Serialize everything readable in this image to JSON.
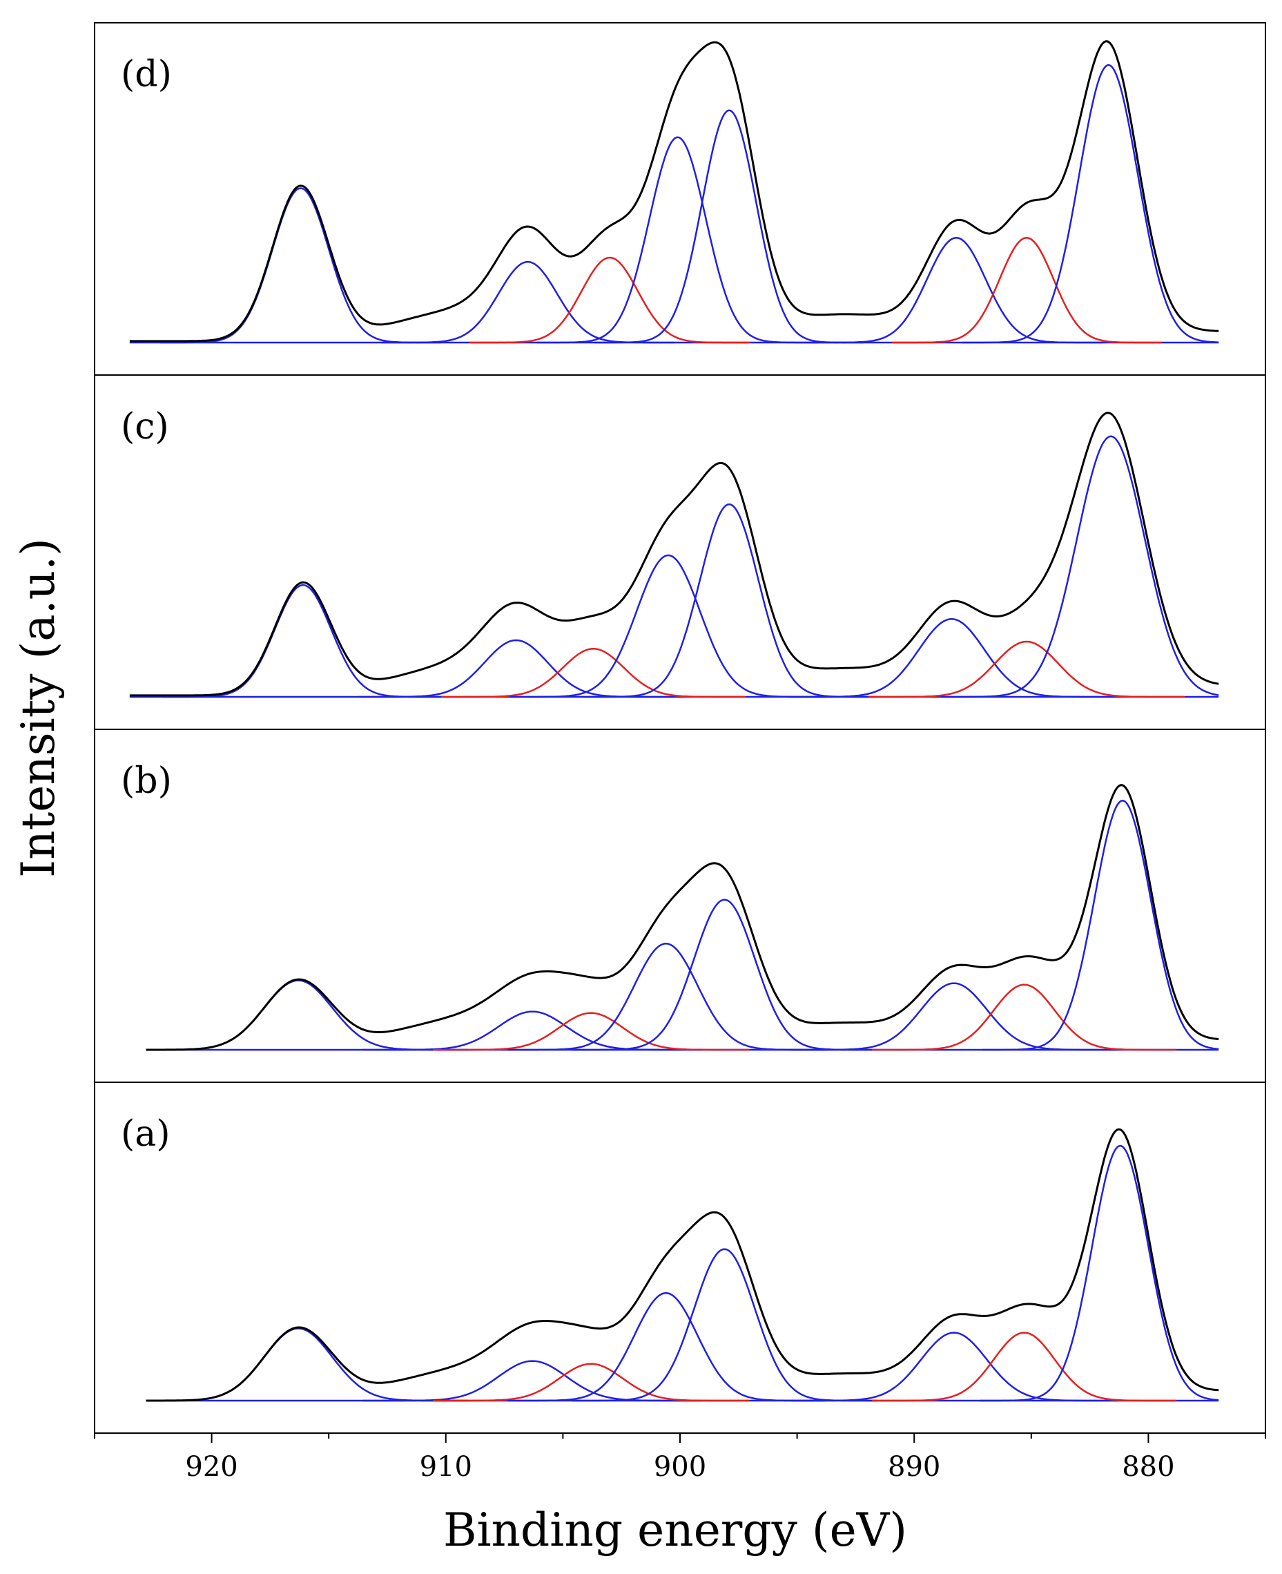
{
  "chart_data": {
    "type": "line",
    "title": "",
    "xlabel": "Binding energy (eV)",
    "ylabel": "Intensity (a.u.)",
    "x_reversed": true,
    "xlim": [
      925,
      875
    ],
    "xticks": [
      920,
      910,
      900,
      890,
      880
    ],
    "x_tick_labels": [
      "920",
      "910",
      "900",
      "890",
      "880"
    ],
    "yticks_shown": false,
    "grid": false,
    "legend": "none",
    "colors": {
      "experimental": "#000000",
      "fit_blue": "#1f1fe6",
      "fit_red": "#e61f1f",
      "baseline": "#1f1fe6"
    },
    "panels": [
      {
        "label": "(d)",
        "x_range": [
          923.5,
          877
        ],
        "ylim": [
          0,
          1.1
        ],
        "peaks": [
          {
            "center": 916.2,
            "height": 0.545,
            "sigma": 1.2,
            "color": "blue"
          },
          {
            "center": 906.5,
            "height": 0.285,
            "sigma": 1.25,
            "color": "blue"
          },
          {
            "center": 903.0,
            "height": 0.3,
            "sigma": 1.2,
            "color": "red"
          },
          {
            "center": 900.1,
            "height": 0.725,
            "sigma": 1.2,
            "color": "blue"
          },
          {
            "center": 897.9,
            "height": 0.82,
            "sigma": 1.15,
            "color": "blue"
          },
          {
            "center": 888.2,
            "height": 0.37,
            "sigma": 1.25,
            "color": "blue"
          },
          {
            "center": 885.2,
            "height": 0.37,
            "sigma": 1.15,
            "color": "red"
          },
          {
            "center": 881.7,
            "height": 0.98,
            "sigma": 1.25,
            "color": "blue"
          }
        ]
      },
      {
        "label": "(c)",
        "x_range": [
          923.5,
          877
        ],
        "ylim": [
          0,
          1.1
        ],
        "peaks": [
          {
            "center": 916.1,
            "height": 0.395,
            "sigma": 1.2,
            "color": "blue"
          },
          {
            "center": 907.0,
            "height": 0.2,
            "sigma": 1.35,
            "color": "blue"
          },
          {
            "center": 903.7,
            "height": 0.17,
            "sigma": 1.3,
            "color": "red"
          },
          {
            "center": 900.5,
            "height": 0.5,
            "sigma": 1.35,
            "color": "blue"
          },
          {
            "center": 897.9,
            "height": 0.68,
            "sigma": 1.25,
            "color": "blue"
          },
          {
            "center": 888.4,
            "height": 0.275,
            "sigma": 1.4,
            "color": "blue"
          },
          {
            "center": 885.2,
            "height": 0.195,
            "sigma": 1.35,
            "color": "red"
          },
          {
            "center": 881.6,
            "height": 0.92,
            "sigma": 1.45,
            "color": "blue"
          }
        ]
      },
      {
        "label": "(b)",
        "x_range": [
          922.8,
          877
        ],
        "ylim": [
          0,
          1.1
        ],
        "peaks": [
          {
            "center": 916.3,
            "height": 0.245,
            "sigma": 1.45,
            "color": "blue"
          },
          {
            "center": 906.3,
            "height": 0.135,
            "sigma": 1.45,
            "color": "blue"
          },
          {
            "center": 903.8,
            "height": 0.13,
            "sigma": 1.35,
            "color": "red"
          },
          {
            "center": 900.6,
            "height": 0.375,
            "sigma": 1.35,
            "color": "blue"
          },
          {
            "center": 898.1,
            "height": 0.53,
            "sigma": 1.3,
            "color": "blue"
          },
          {
            "center": 888.3,
            "height": 0.235,
            "sigma": 1.4,
            "color": "blue"
          },
          {
            "center": 885.3,
            "height": 0.23,
            "sigma": 1.3,
            "color": "red"
          },
          {
            "center": 881.1,
            "height": 0.88,
            "sigma": 1.2,
            "color": "blue"
          }
        ]
      },
      {
        "label": "(a)",
        "x_range": [
          922.8,
          877
        ],
        "ylim": [
          0,
          1.1
        ],
        "peaks": [
          {
            "center": 916.3,
            "height": 0.255,
            "sigma": 1.45,
            "color": "blue"
          },
          {
            "center": 906.3,
            "height": 0.14,
            "sigma": 1.45,
            "color": "blue"
          },
          {
            "center": 903.8,
            "height": 0.13,
            "sigma": 1.35,
            "color": "red"
          },
          {
            "center": 900.6,
            "height": 0.38,
            "sigma": 1.35,
            "color": "blue"
          },
          {
            "center": 898.1,
            "height": 0.535,
            "sigma": 1.3,
            "color": "blue"
          },
          {
            "center": 888.3,
            "height": 0.24,
            "sigma": 1.4,
            "color": "blue"
          },
          {
            "center": 885.3,
            "height": 0.24,
            "sigma": 1.3,
            "color": "red"
          },
          {
            "center": 881.2,
            "height": 0.9,
            "sigma": 1.2,
            "color": "blue"
          }
        ]
      }
    ]
  }
}
